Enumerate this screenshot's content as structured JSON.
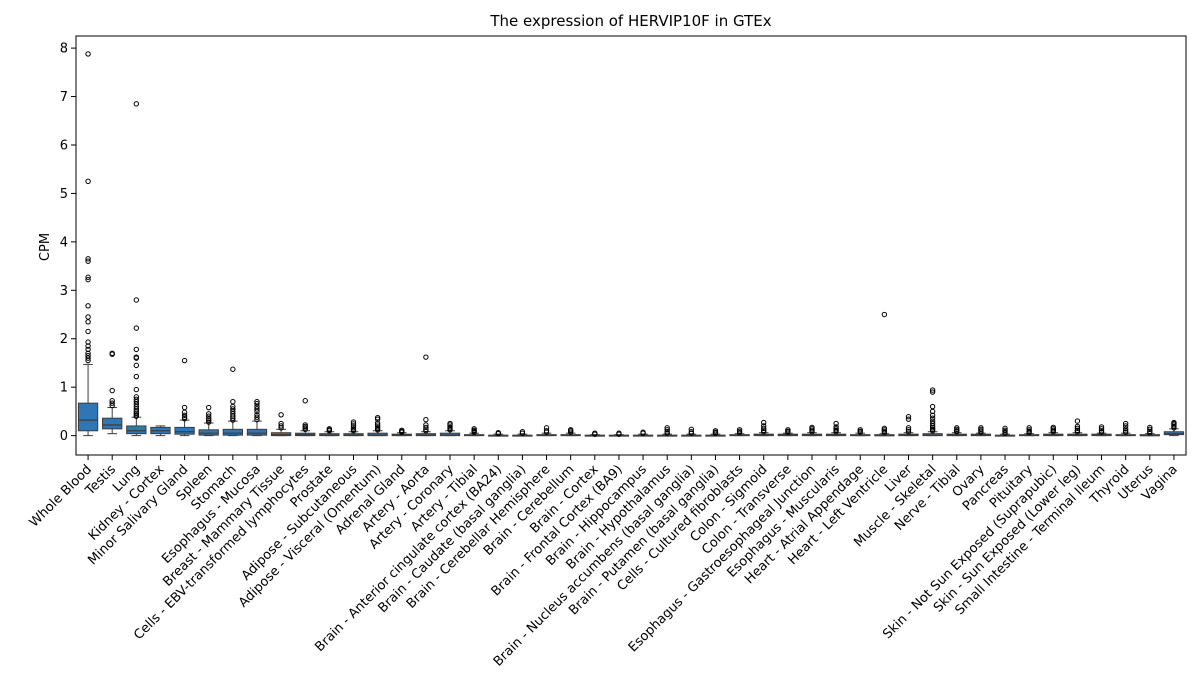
{
  "chart_data": {
    "type": "box",
    "title": "The expression of HERVIP10F in GTEx",
    "xlabel": "",
    "ylabel": "CPM",
    "ylim": [
      -0.4,
      8.25
    ],
    "yticks": [
      0,
      1,
      2,
      3,
      4,
      5,
      6,
      7,
      8
    ],
    "grid": false,
    "box_color": "#2f77b4",
    "categories": [
      "Whole Blood",
      "Testis",
      "Lung",
      "Kidney - Cortex",
      "Minor Salivary Gland",
      "Spleen",
      "Stomach",
      "Esophagus - Mucosa",
      "Breast - Mammary Tissue",
      "Cells - EBV-transformed lymphocytes",
      "Prostate",
      "Adipose - Subcutaneous",
      "Adipose - Visceral (Omentum)",
      "Adrenal Gland",
      "Artery - Aorta",
      "Artery - Coronary",
      "Artery - Tibial",
      "Brain - Anterior cingulate cortex (BA24)",
      "Brain - Caudate (basal ganglia)",
      "Brain - Cerebellar Hemisphere",
      "Brain - Cerebellum",
      "Brain - Cortex",
      "Brain - Frontal Cortex (BA9)",
      "Brain - Hippocampus",
      "Brain - Hypothalamus",
      "Brain - Nucleus accumbens (basal ganglia)",
      "Brain - Putamen (basal ganglia)",
      "Cells - Cultured fibroblasts",
      "Colon - Sigmoid",
      "Colon - Transverse",
      "Esophagus - Gastroesophageal Junction",
      "Esophagus - Muscularis",
      "Heart - Atrial Appendage",
      "Heart - Left Ventricle",
      "Liver",
      "Muscle - Skeletal",
      "Nerve - Tibial",
      "Ovary",
      "Pancreas",
      "Pituitary",
      "Skin - Not Sun Exposed (Suprapubic)",
      "Skin - Sun Exposed (Lower leg)",
      "Small Intestine - Terminal Ileum",
      "Thyroid",
      "Uterus",
      "Vagina"
    ],
    "boxes": [
      {
        "min": 0.0,
        "q1": 0.1,
        "median": 0.32,
        "q3": 0.67,
        "max": 1.47,
        "outliers": [
          1.55,
          1.6,
          1.65,
          1.7,
          1.78,
          1.85,
          1.93,
          2.15,
          2.35,
          2.45,
          2.68,
          3.22,
          3.27,
          3.6,
          3.65,
          5.25,
          7.88
        ]
      },
      {
        "min": 0.04,
        "q1": 0.14,
        "median": 0.22,
        "q3": 0.36,
        "max": 0.58,
        "outliers": [
          0.62,
          0.67,
          0.72,
          0.93,
          1.68,
          1.7
        ]
      },
      {
        "min": 0.0,
        "q1": 0.04,
        "median": 0.1,
        "q3": 0.2,
        "max": 0.38,
        "outliers": [
          0.4,
          0.43,
          0.46,
          0.5,
          0.55,
          0.6,
          0.65,
          0.7,
          0.75,
          0.8,
          0.95,
          1.22,
          1.45,
          1.6,
          1.62,
          1.78,
          2.22,
          2.8,
          6.85
        ]
      },
      {
        "min": 0.0,
        "q1": 0.04,
        "median": 0.1,
        "q3": 0.17,
        "max": 0.2,
        "outliers": []
      },
      {
        "min": 0.0,
        "q1": 0.03,
        "median": 0.08,
        "q3": 0.17,
        "max": 0.32,
        "outliers": [
          0.35,
          0.38,
          0.42,
          0.48,
          0.58,
          1.55
        ]
      },
      {
        "min": 0.0,
        "q1": 0.01,
        "median": 0.05,
        "q3": 0.12,
        "max": 0.26,
        "outliers": [
          0.28,
          0.32,
          0.35,
          0.4,
          0.45,
          0.58
        ]
      },
      {
        "min": 0.0,
        "q1": 0.01,
        "median": 0.05,
        "q3": 0.13,
        "max": 0.3,
        "outliers": [
          0.32,
          0.36,
          0.4,
          0.45,
          0.5,
          0.55,
          0.6,
          0.7,
          1.37
        ]
      },
      {
        "min": 0.0,
        "q1": 0.01,
        "median": 0.05,
        "q3": 0.13,
        "max": 0.3,
        "outliers": [
          0.33,
          0.38,
          0.43,
          0.5,
          0.55,
          0.6,
          0.66,
          0.7
        ]
      },
      {
        "min": 0.0,
        "q1": 0.0,
        "median": 0.02,
        "q3": 0.06,
        "max": 0.13,
        "outliers": [
          0.16,
          0.2,
          0.25,
          0.43
        ]
      },
      {
        "min": 0.0,
        "q1": 0.0,
        "median": 0.02,
        "q3": 0.05,
        "max": 0.1,
        "outliers": [
          0.13,
          0.16,
          0.19,
          0.22,
          0.72
        ]
      },
      {
        "min": 0.0,
        "q1": 0.0,
        "median": 0.01,
        "q3": 0.04,
        "max": 0.08,
        "outliers": [
          0.1,
          0.12,
          0.14
        ]
      },
      {
        "min": 0.0,
        "q1": 0.0,
        "median": 0.01,
        "q3": 0.04,
        "max": 0.08,
        "outliers": [
          0.1,
          0.13,
          0.16,
          0.2,
          0.24,
          0.28
        ]
      },
      {
        "min": 0.0,
        "q1": 0.0,
        "median": 0.01,
        "q3": 0.05,
        "max": 0.1,
        "outliers": [
          0.12,
          0.15,
          0.18,
          0.22,
          0.26,
          0.34,
          0.37
        ]
      },
      {
        "min": 0.0,
        "q1": 0.0,
        "median": 0.01,
        "q3": 0.03,
        "max": 0.06,
        "outliers": [
          0.07,
          0.09,
          0.11
        ]
      },
      {
        "min": 0.0,
        "q1": 0.0,
        "median": 0.01,
        "q3": 0.04,
        "max": 0.08,
        "outliers": [
          0.1,
          0.13,
          0.17,
          0.22,
          0.33,
          1.62
        ]
      },
      {
        "min": 0.0,
        "q1": 0.0,
        "median": 0.01,
        "q3": 0.05,
        "max": 0.1,
        "outliers": [
          0.12,
          0.15,
          0.18,
          0.22,
          0.25
        ]
      },
      {
        "min": 0.0,
        "q1": 0.0,
        "median": 0.01,
        "q3": 0.02,
        "max": 0.05,
        "outliers": [
          0.07,
          0.09,
          0.11,
          0.14
        ]
      },
      {
        "min": 0.0,
        "q1": 0.0,
        "median": 0.0,
        "q3": 0.01,
        "max": 0.03,
        "outliers": [
          0.04,
          0.06
        ]
      },
      {
        "min": 0.0,
        "q1": 0.0,
        "median": 0.0,
        "q3": 0.01,
        "max": 0.03,
        "outliers": [
          0.05,
          0.08
        ]
      },
      {
        "min": 0.0,
        "q1": 0.0,
        "median": 0.01,
        "q3": 0.02,
        "max": 0.05,
        "outliers": [
          0.07,
          0.1,
          0.16
        ]
      },
      {
        "min": 0.0,
        "q1": 0.0,
        "median": 0.01,
        "q3": 0.02,
        "max": 0.05,
        "outliers": [
          0.07,
          0.1,
          0.12
        ]
      },
      {
        "min": 0.0,
        "q1": 0.0,
        "median": 0.0,
        "q3": 0.01,
        "max": 0.02,
        "outliers": [
          0.03,
          0.05
        ]
      },
      {
        "min": 0.0,
        "q1": 0.0,
        "median": 0.0,
        "q3": 0.01,
        "max": 0.02,
        "outliers": [
          0.03,
          0.05
        ]
      },
      {
        "min": 0.0,
        "q1": 0.0,
        "median": 0.0,
        "q3": 0.01,
        "max": 0.03,
        "outliers": [
          0.05,
          0.07
        ]
      },
      {
        "min": 0.0,
        "q1": 0.0,
        "median": 0.0,
        "q3": 0.01,
        "max": 0.03,
        "outliers": [
          0.05,
          0.08,
          0.12,
          0.16
        ]
      },
      {
        "min": 0.0,
        "q1": 0.0,
        "median": 0.0,
        "q3": 0.01,
        "max": 0.03,
        "outliers": [
          0.05,
          0.08,
          0.13
        ]
      },
      {
        "min": 0.0,
        "q1": 0.0,
        "median": 0.0,
        "q3": 0.01,
        "max": 0.03,
        "outliers": [
          0.05,
          0.07,
          0.1
        ]
      },
      {
        "min": 0.0,
        "q1": 0.0,
        "median": 0.01,
        "q3": 0.02,
        "max": 0.04,
        "outliers": [
          0.06,
          0.09,
          0.12
        ]
      },
      {
        "min": 0.0,
        "q1": 0.0,
        "median": 0.01,
        "q3": 0.03,
        "max": 0.06,
        "outliers": [
          0.08,
          0.11,
          0.15,
          0.2,
          0.27
        ]
      },
      {
        "min": 0.0,
        "q1": 0.0,
        "median": 0.01,
        "q3": 0.03,
        "max": 0.05,
        "outliers": [
          0.07,
          0.09,
          0.12
        ]
      },
      {
        "min": 0.0,
        "q1": 0.0,
        "median": 0.01,
        "q3": 0.03,
        "max": 0.06,
        "outliers": [
          0.08,
          0.11,
          0.14,
          0.17
        ]
      },
      {
        "min": 0.0,
        "q1": 0.0,
        "median": 0.01,
        "q3": 0.03,
        "max": 0.06,
        "outliers": [
          0.08,
          0.11,
          0.14,
          0.18,
          0.25
        ]
      },
      {
        "min": 0.0,
        "q1": 0.0,
        "median": 0.01,
        "q3": 0.02,
        "max": 0.05,
        "outliers": [
          0.07,
          0.09,
          0.12
        ]
      },
      {
        "min": 0.0,
        "q1": 0.0,
        "median": 0.0,
        "q3": 0.02,
        "max": 0.04,
        "outliers": [
          0.06,
          0.09,
          0.12,
          0.15,
          2.5
        ]
      },
      {
        "min": 0.0,
        "q1": 0.0,
        "median": 0.01,
        "q3": 0.03,
        "max": 0.06,
        "outliers": [
          0.08,
          0.12,
          0.16,
          0.34,
          0.39
        ]
      },
      {
        "min": 0.0,
        "q1": 0.0,
        "median": 0.01,
        "q3": 0.04,
        "max": 0.08,
        "outliers": [
          0.1,
          0.13,
          0.16,
          0.2,
          0.25,
          0.3,
          0.36,
          0.42,
          0.5,
          0.6,
          0.9,
          0.94
        ]
      },
      {
        "min": 0.0,
        "q1": 0.0,
        "median": 0.01,
        "q3": 0.03,
        "max": 0.06,
        "outliers": [
          0.08,
          0.1,
          0.13,
          0.16
        ]
      },
      {
        "min": 0.0,
        "q1": 0.0,
        "median": 0.01,
        "q3": 0.03,
        "max": 0.05,
        "outliers": [
          0.07,
          0.1,
          0.13,
          0.16
        ]
      },
      {
        "min": 0.0,
        "q1": 0.0,
        "median": 0.0,
        "q3": 0.01,
        "max": 0.03,
        "outliers": [
          0.05,
          0.08,
          0.11,
          0.15
        ]
      },
      {
        "min": 0.0,
        "q1": 0.0,
        "median": 0.01,
        "q3": 0.02,
        "max": 0.04,
        "outliers": [
          0.06,
          0.09,
          0.12,
          0.16
        ]
      },
      {
        "min": 0.0,
        "q1": 0.0,
        "median": 0.01,
        "q3": 0.03,
        "max": 0.06,
        "outliers": [
          0.08,
          0.11,
          0.14,
          0.17
        ]
      },
      {
        "min": 0.0,
        "q1": 0.0,
        "median": 0.01,
        "q3": 0.03,
        "max": 0.06,
        "outliers": [
          0.08,
          0.11,
          0.15,
          0.19,
          0.3
        ]
      },
      {
        "min": 0.0,
        "q1": 0.0,
        "median": 0.01,
        "q3": 0.03,
        "max": 0.05,
        "outliers": [
          0.07,
          0.1,
          0.14,
          0.18
        ]
      },
      {
        "min": 0.0,
        "q1": 0.0,
        "median": 0.01,
        "q3": 0.02,
        "max": 0.05,
        "outliers": [
          0.07,
          0.1,
          0.14,
          0.2,
          0.25
        ]
      },
      {
        "min": 0.0,
        "q1": 0.0,
        "median": 0.0,
        "q3": 0.02,
        "max": 0.04,
        "outliers": [
          0.06,
          0.09,
          0.13,
          0.17
        ]
      },
      {
        "min": 0.0,
        "q1": 0.02,
        "median": 0.04,
        "q3": 0.08,
        "max": 0.14,
        "outliers": [
          0.16,
          0.19,
          0.22,
          0.25,
          0.27
        ]
      }
    ]
  }
}
